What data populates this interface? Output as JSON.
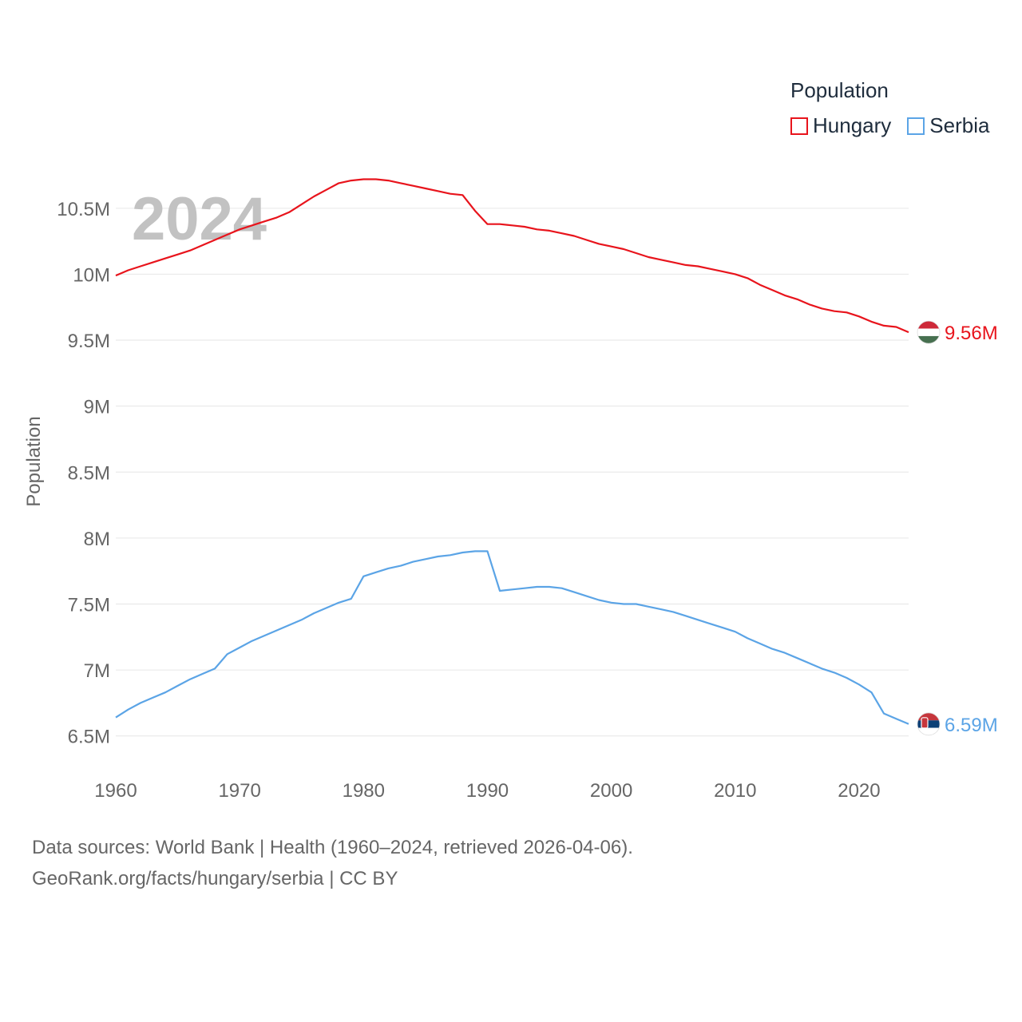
{
  "chart_data": {
    "type": "line",
    "year_watermark": "2024",
    "ylabel": "Population",
    "xlim": [
      1960,
      2024
    ],
    "ylim": [
      6250000,
      10850000
    ],
    "x_ticks": [
      1960,
      1970,
      1980,
      1990,
      2000,
      2010,
      2020
    ],
    "x_tick_labels": [
      "1960",
      "1970",
      "1980",
      "1990",
      "2000",
      "2010",
      "2020"
    ],
    "y_ticks": [
      6500000,
      7000000,
      7500000,
      8000000,
      8500000,
      9000000,
      9500000,
      10000000,
      10500000
    ],
    "y_tick_labels": [
      "6.5M",
      "7M",
      "7.5M",
      "8M",
      "8.5M",
      "9M",
      "9.5M",
      "10M",
      "10.5M"
    ],
    "legend_title": "Population",
    "series": [
      {
        "name": "Hungary",
        "color": "#e8141c",
        "end_label": "9.56M",
        "flag": "hungary-flag",
        "points": [
          [
            1960,
            9990000
          ],
          [
            1961,
            10030000
          ],
          [
            1962,
            10060000
          ],
          [
            1963,
            10090000
          ],
          [
            1964,
            10120000
          ],
          [
            1965,
            10150000
          ],
          [
            1966,
            10180000
          ],
          [
            1967,
            10220000
          ],
          [
            1968,
            10260000
          ],
          [
            1969,
            10300000
          ],
          [
            1970,
            10340000
          ],
          [
            1971,
            10370000
          ],
          [
            1972,
            10400000
          ],
          [
            1973,
            10430000
          ],
          [
            1974,
            10470000
          ],
          [
            1975,
            10530000
          ],
          [
            1976,
            10590000
          ],
          [
            1977,
            10640000
          ],
          [
            1978,
            10690000
          ],
          [
            1979,
            10710000
          ],
          [
            1980,
            10720000
          ],
          [
            1981,
            10720000
          ],
          [
            1982,
            10710000
          ],
          [
            1983,
            10690000
          ],
          [
            1984,
            10670000
          ],
          [
            1985,
            10650000
          ],
          [
            1986,
            10630000
          ],
          [
            1987,
            10610000
          ],
          [
            1988,
            10600000
          ],
          [
            1989,
            10480000
          ],
          [
            1990,
            10380000
          ],
          [
            1991,
            10380000
          ],
          [
            1992,
            10370000
          ],
          [
            1993,
            10360000
          ],
          [
            1994,
            10340000
          ],
          [
            1995,
            10330000
          ],
          [
            1996,
            10310000
          ],
          [
            1997,
            10290000
          ],
          [
            1998,
            10260000
          ],
          [
            1999,
            10230000
          ],
          [
            2000,
            10210000
          ],
          [
            2001,
            10190000
          ],
          [
            2002,
            10160000
          ],
          [
            2003,
            10130000
          ],
          [
            2004,
            10110000
          ],
          [
            2005,
            10090000
          ],
          [
            2006,
            10070000
          ],
          [
            2007,
            10060000
          ],
          [
            2008,
            10040000
          ],
          [
            2009,
            10020000
          ],
          [
            2010,
            10000000
          ],
          [
            2011,
            9970000
          ],
          [
            2012,
            9920000
          ],
          [
            2013,
            9880000
          ],
          [
            2014,
            9840000
          ],
          [
            2015,
            9810000
          ],
          [
            2016,
            9770000
          ],
          [
            2017,
            9740000
          ],
          [
            2018,
            9720000
          ],
          [
            2019,
            9710000
          ],
          [
            2020,
            9680000
          ],
          [
            2021,
            9640000
          ],
          [
            2022,
            9610000
          ],
          [
            2023,
            9600000
          ],
          [
            2024,
            9560000
          ]
        ]
      },
      {
        "name": "Serbia",
        "color": "#5ba4e6",
        "end_label": "6.59M",
        "flag": "serbia-flag",
        "points": [
          [
            1960,
            6640000
          ],
          [
            1961,
            6700000
          ],
          [
            1962,
            6750000
          ],
          [
            1963,
            6790000
          ],
          [
            1964,
            6830000
          ],
          [
            1965,
            6880000
          ],
          [
            1966,
            6930000
          ],
          [
            1967,
            6970000
          ],
          [
            1968,
            7010000
          ],
          [
            1969,
            7120000
          ],
          [
            1970,
            7170000
          ],
          [
            1971,
            7220000
          ],
          [
            1972,
            7260000
          ],
          [
            1973,
            7300000
          ],
          [
            1974,
            7340000
          ],
          [
            1975,
            7380000
          ],
          [
            1976,
            7430000
          ],
          [
            1977,
            7470000
          ],
          [
            1978,
            7510000
          ],
          [
            1979,
            7540000
          ],
          [
            1980,
            7710000
          ],
          [
            1981,
            7740000
          ],
          [
            1982,
            7770000
          ],
          [
            1983,
            7790000
          ],
          [
            1984,
            7820000
          ],
          [
            1985,
            7840000
          ],
          [
            1986,
            7860000
          ],
          [
            1987,
            7870000
          ],
          [
            1988,
            7890000
          ],
          [
            1989,
            7900000
          ],
          [
            1990,
            7900000
          ],
          [
            1991,
            7600000
          ],
          [
            1992,
            7610000
          ],
          [
            1993,
            7620000
          ],
          [
            1994,
            7630000
          ],
          [
            1995,
            7630000
          ],
          [
            1996,
            7620000
          ],
          [
            1997,
            7590000
          ],
          [
            1998,
            7560000
          ],
          [
            1999,
            7530000
          ],
          [
            2000,
            7510000
          ],
          [
            2001,
            7500000
          ],
          [
            2002,
            7500000
          ],
          [
            2003,
            7480000
          ],
          [
            2004,
            7460000
          ],
          [
            2005,
            7440000
          ],
          [
            2006,
            7410000
          ],
          [
            2007,
            7380000
          ],
          [
            2008,
            7350000
          ],
          [
            2009,
            7320000
          ],
          [
            2010,
            7290000
          ],
          [
            2011,
            7240000
          ],
          [
            2012,
            7200000
          ],
          [
            2013,
            7160000
          ],
          [
            2014,
            7130000
          ],
          [
            2015,
            7090000
          ],
          [
            2016,
            7050000
          ],
          [
            2017,
            7010000
          ],
          [
            2018,
            6980000
          ],
          [
            2019,
            6940000
          ],
          [
            2020,
            6890000
          ],
          [
            2021,
            6830000
          ],
          [
            2022,
            6670000
          ],
          [
            2023,
            6630000
          ],
          [
            2024,
            6590000
          ]
        ]
      }
    ]
  },
  "footer": {
    "line1": "Data sources: World Bank | Health (1960–2024, retrieved 2026-04-06).",
    "line2": "GeoRank.org/facts/hungary/serbia | CC BY"
  }
}
